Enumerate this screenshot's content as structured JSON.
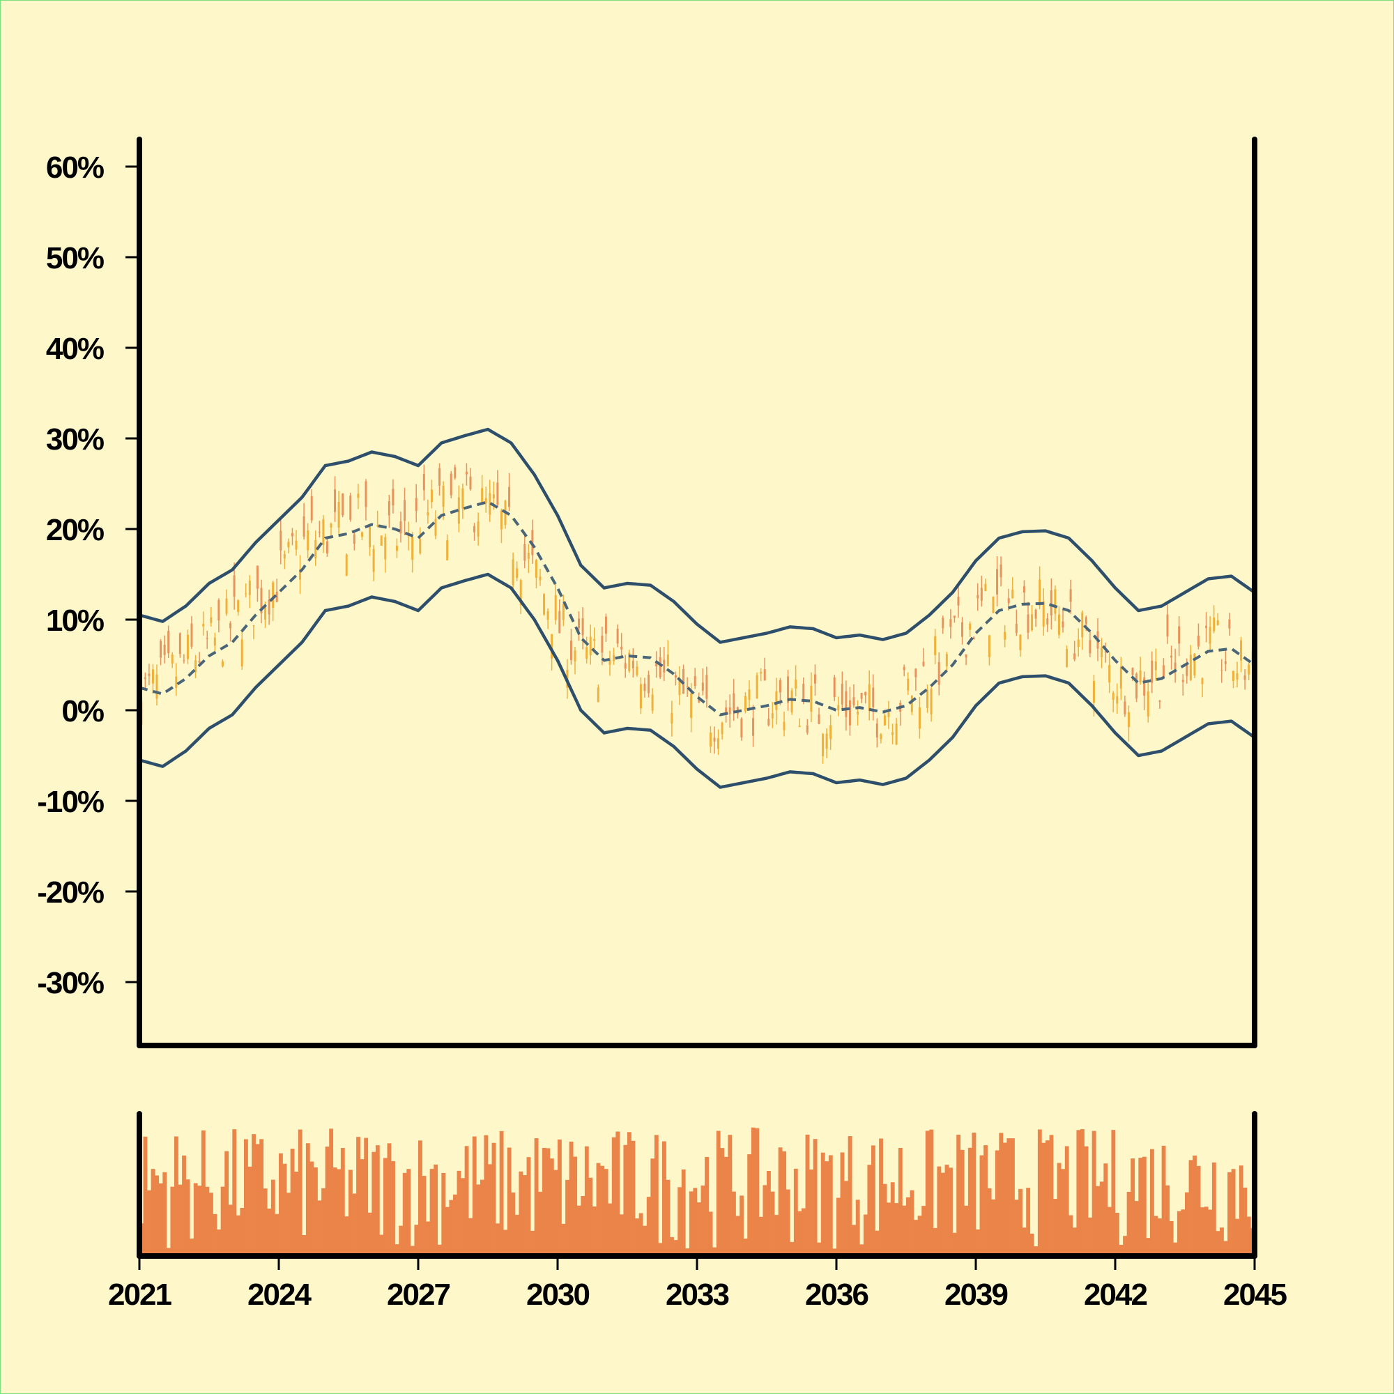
{
  "chart_data": {
    "type": "candlestick",
    "price": {
      "y_ticks": [
        "-30%",
        "-20%",
        "-10%",
        "0%",
        "10%",
        "20%",
        "30%",
        "40%",
        "50%",
        "60%"
      ],
      "y_tick_values": [
        -30,
        -20,
        -10,
        0,
        10,
        20,
        30,
        40,
        50,
        60
      ],
      "ylim": [
        -37,
        63
      ],
      "candles": {
        "count": 288,
        "up_color": "#e8935c",
        "down_color": "#f0b03a"
      },
      "series": [
        {
          "role": "upper-band",
          "color": "#2e4f6b",
          "x": [
            2021.0,
            2021.5,
            2022.0,
            2022.5,
            2023.0,
            2023.5,
            2024.0,
            2024.5,
            2025.0,
            2025.5,
            2026.0,
            2026.5,
            2027.0,
            2027.5,
            2028.0,
            2028.5,
            2029.0,
            2029.5,
            2030.0,
            2030.5,
            2031.0,
            2031.5,
            2032.0,
            2032.5,
            2033.0,
            2033.5,
            2034.0,
            2034.5,
            2035.0,
            2035.5,
            2036.0,
            2036.5,
            2037.0,
            2037.5,
            2038.0,
            2038.5,
            2039.0,
            2039.5,
            2040.0,
            2040.5,
            2041.0,
            2041.5,
            2042.0,
            2042.5,
            2043.0,
            2043.5,
            2044.0,
            2044.5,
            2045.0
          ],
          "values": [
            10.5,
            9.8,
            11.5,
            14.0,
            15.5,
            18.5,
            21.0,
            23.5,
            27.0,
            27.5,
            28.5,
            28.0,
            27.0,
            29.5,
            30.3,
            31.0,
            29.5,
            26.0,
            21.5,
            16.0,
            13.5,
            14.0,
            13.8,
            12.0,
            9.5,
            7.5,
            8.0,
            8.5,
            9.2,
            9.0,
            8.0,
            8.3,
            7.8,
            8.5,
            10.5,
            13.0,
            16.5,
            19.0,
            19.7,
            19.8,
            19.0,
            16.5,
            13.5,
            11.0,
            11.5,
            13.0,
            14.5,
            14.8,
            13.0
          ]
        },
        {
          "role": "middle-band",
          "color": "#4a6478",
          "x": [
            2021.0,
            2021.5,
            2022.0,
            2022.5,
            2023.0,
            2023.5,
            2024.0,
            2024.5,
            2025.0,
            2025.5,
            2026.0,
            2026.5,
            2027.0,
            2027.5,
            2028.0,
            2028.5,
            2029.0,
            2029.5,
            2030.0,
            2030.5,
            2031.0,
            2031.5,
            2032.0,
            2032.5,
            2033.0,
            2033.5,
            2034.0,
            2034.5,
            2035.0,
            2035.5,
            2036.0,
            2036.5,
            2037.0,
            2037.5,
            2038.0,
            2038.5,
            2039.0,
            2039.5,
            2040.0,
            2040.5,
            2041.0,
            2041.5,
            2042.0,
            2042.5,
            2043.0,
            2043.5,
            2044.0,
            2044.5,
            2045.0
          ],
          "values": [
            2.5,
            1.8,
            3.5,
            6.0,
            7.5,
            10.5,
            13.0,
            15.5,
            19.0,
            19.5,
            20.5,
            20.0,
            19.0,
            21.5,
            22.3,
            23.0,
            21.5,
            18.0,
            13.5,
            8.0,
            5.5,
            6.0,
            5.8,
            4.0,
            1.5,
            -0.5,
            0.0,
            0.5,
            1.2,
            1.0,
            0.0,
            0.3,
            -0.2,
            0.5,
            2.5,
            5.0,
            8.5,
            11.0,
            11.7,
            11.8,
            11.0,
            8.5,
            5.5,
            3.0,
            3.5,
            5.0,
            6.5,
            6.8,
            5.0
          ]
        },
        {
          "role": "lower-band",
          "color": "#2e4f6b",
          "x": [
            2021.0,
            2021.5,
            2022.0,
            2022.5,
            2023.0,
            2023.5,
            2024.0,
            2024.5,
            2025.0,
            2025.5,
            2026.0,
            2026.5,
            2027.0,
            2027.5,
            2028.0,
            2028.5,
            2029.0,
            2029.5,
            2030.0,
            2030.5,
            2031.0,
            2031.5,
            2032.0,
            2032.5,
            2033.0,
            2033.5,
            2034.0,
            2034.5,
            2035.0,
            2035.5,
            2036.0,
            2036.5,
            2037.0,
            2037.5,
            2038.0,
            2038.5,
            2039.0,
            2039.5,
            2040.0,
            2040.5,
            2041.0,
            2041.5,
            2042.0,
            2042.5,
            2043.0,
            2043.5,
            2044.0,
            2044.5,
            2045.0
          ],
          "values": [
            -5.5,
            -6.2,
            -4.5,
            -2.0,
            -0.5,
            2.5,
            5.0,
            7.5,
            11.0,
            11.5,
            12.5,
            12.0,
            11.0,
            13.5,
            14.3,
            15.0,
            13.5,
            10.0,
            5.5,
            0.0,
            -2.5,
            -2.0,
            -2.2,
            -4.0,
            -6.5,
            -8.5,
            -8.0,
            -7.5,
            -6.8,
            -7.0,
            -8.0,
            -7.7,
            -8.2,
            -7.5,
            -5.5,
            -3.0,
            0.5,
            3.0,
            3.7,
            3.8,
            3.0,
            0.5,
            -2.5,
            -5.0,
            -4.5,
            -3.0,
            -1.5,
            -1.2,
            -3.0
          ]
        }
      ]
    },
    "volume": {
      "color": "#ea8449",
      "bar_count": 288
    },
    "x_ticks": [
      "2021",
      "2024",
      "2027",
      "2030",
      "2033",
      "2036",
      "2039",
      "2042",
      "2045"
    ],
    "x_tick_values": [
      2021,
      2024,
      2027,
      2030,
      2033,
      2036,
      2039,
      2042,
      2045
    ],
    "xlim": [
      2021,
      2045
    ],
    "grid": false,
    "legend": "none"
  }
}
